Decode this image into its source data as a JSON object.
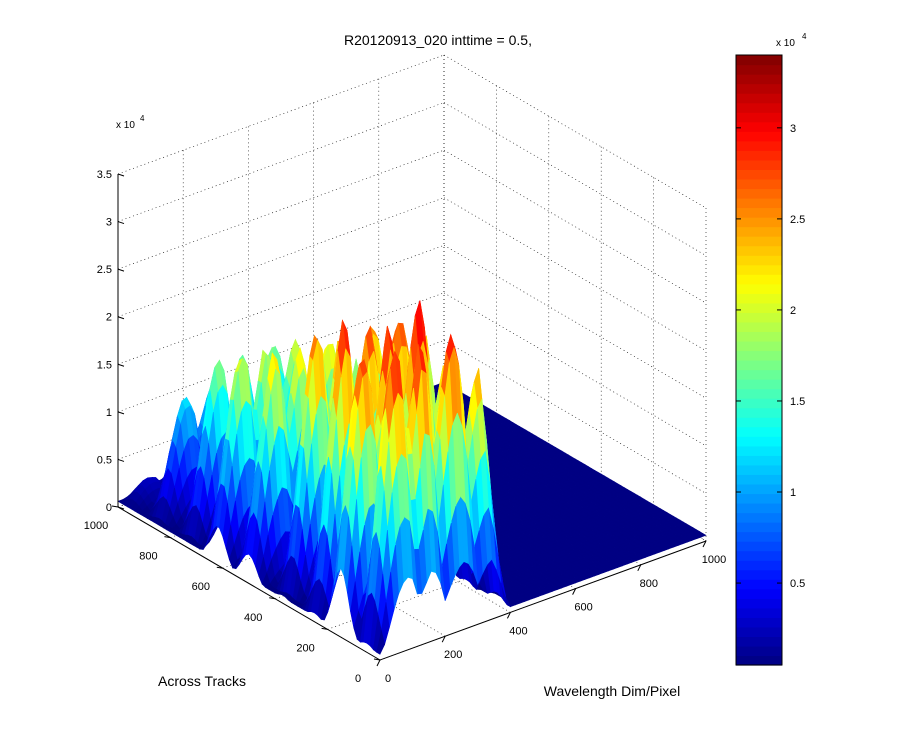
{
  "chart_data": {
    "type": "surface",
    "title": "R20120913_020 inttime = 0.5,",
    "xlabel": "Wavelength Dim/Pixel",
    "ylabel": "Across Tracks",
    "zlabel": "",
    "z_multiplier_label": "x 10",
    "z_multiplier_exponent": "4",
    "colorbar_multiplier_label": "x 10",
    "colorbar_multiplier_exponent": "4",
    "colormap": "jet",
    "grid": true,
    "xlim": [
      0,
      1000
    ],
    "ylim": [
      0,
      1000
    ],
    "zlim": [
      0,
      35000
    ],
    "x_ticks": [
      "0",
      "200",
      "400",
      "600",
      "800",
      "1000"
    ],
    "y_ticks": [
      "0",
      "200",
      "400",
      "600",
      "800",
      "1000"
    ],
    "z_ticks": [
      "0",
      "0.5",
      "1",
      "1.5",
      "2",
      "2.5",
      "3",
      "3.5"
    ],
    "colorbar_ticks": [
      "0.5",
      "1",
      "1.5",
      "2",
      "2.5",
      "3"
    ],
    "colorbar_range": [
      500,
      34000
    ],
    "surface_extent": {
      "x": [
        0,
        400
      ],
      "y": [
        0,
        1000
      ]
    },
    "bands_approx": [
      {
        "y": 50,
        "peak": 32000
      },
      {
        "y": 150,
        "peak": 32000
      },
      {
        "y": 250,
        "peak": 31000
      },
      {
        "y": 370,
        "peak": 28000
      },
      {
        "y": 500,
        "peak": 24000
      },
      {
        "y": 620,
        "peak": 22000
      },
      {
        "y": 740,
        "peak": 19000
      },
      {
        "y": 860,
        "peak": 13000
      },
      {
        "y": 960,
        "peak": 3000
      }
    ],
    "x_profile_approx": {
      "x": [
        0,
        20,
        40,
        60,
        80,
        100,
        120,
        140,
        160,
        180,
        200,
        220,
        240,
        260,
        280,
        300,
        320,
        340,
        360,
        380,
        400
      ],
      "relative": [
        0.03,
        0.25,
        0.55,
        0.8,
        0.95,
        0.9,
        0.6,
        0.78,
        0.98,
        0.88,
        0.5,
        0.72,
        0.9,
        0.97,
        0.85,
        0.55,
        0.7,
        0.82,
        0.6,
        0.3,
        0.04
      ]
    }
  }
}
